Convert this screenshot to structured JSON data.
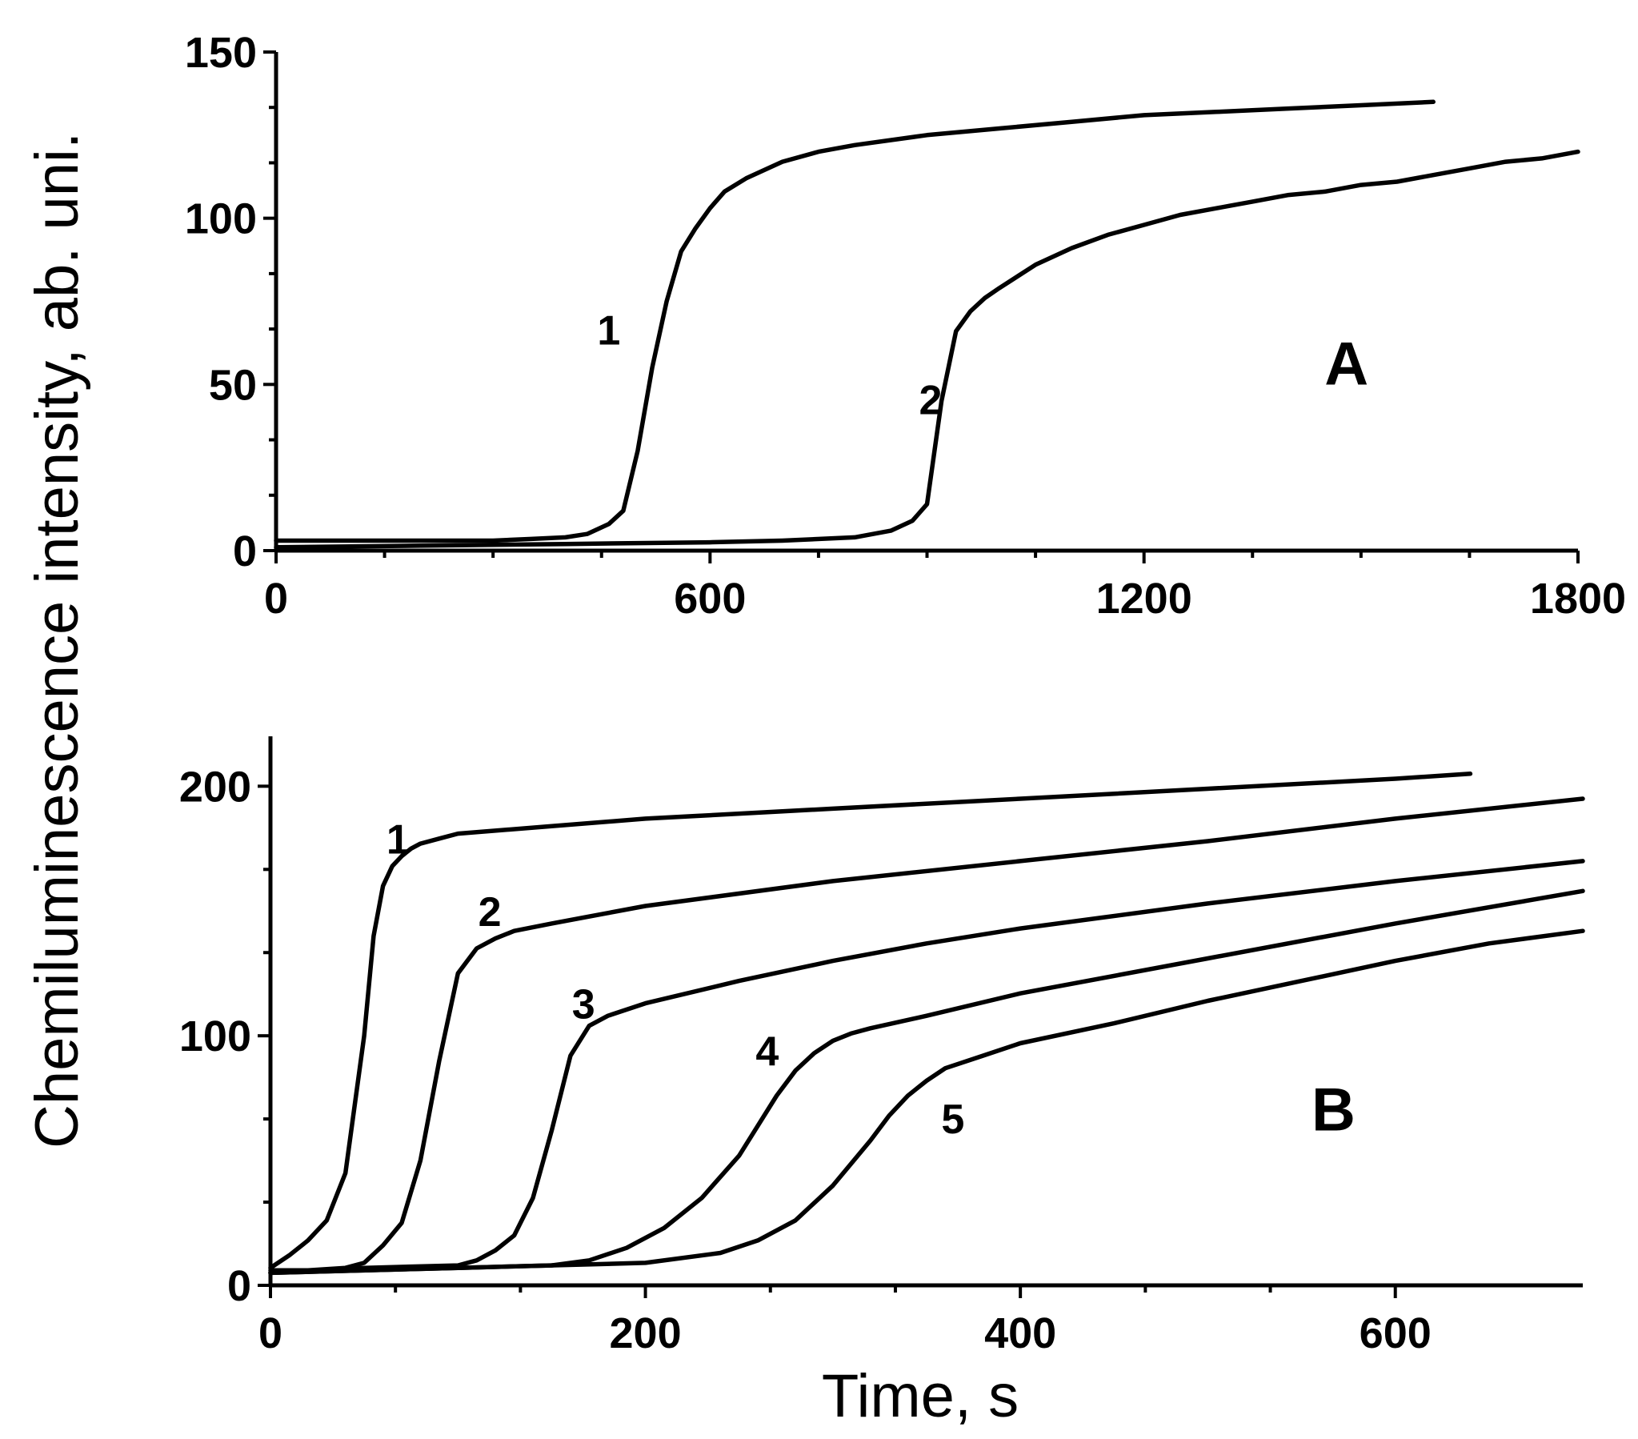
{
  "shared": {
    "ylabel": "Chemiluminescence intensity, ab. uni.",
    "xlabel": "Time, s"
  },
  "chart_data": [
    {
      "type": "line",
      "panel": "A",
      "xlim": [
        0,
        1800
      ],
      "ylim": [
        0,
        150
      ],
      "xticks": [
        0,
        600,
        1200,
        1800
      ],
      "yticks": [
        0,
        50,
        100,
        150
      ],
      "series": [
        {
          "name": "1",
          "x": [
            0,
            100,
            200,
            300,
            350,
            400,
            430,
            460,
            480,
            500,
            520,
            540,
            560,
            580,
            600,
            620,
            650,
            680,
            700,
            750,
            800,
            900,
            1000,
            1100,
            1200,
            1300,
            1400,
            1500,
            1600
          ],
          "y": [
            3,
            3,
            3,
            3,
            3.5,
            4,
            5,
            8,
            12,
            30,
            55,
            75,
            90,
            97,
            103,
            108,
            112,
            115,
            117,
            120,
            122,
            125,
            127,
            129,
            131,
            132,
            133,
            134,
            135
          ]
        },
        {
          "name": "2",
          "x": [
            0,
            200,
            400,
            600,
            700,
            800,
            850,
            880,
            900,
            920,
            940,
            960,
            980,
            1000,
            1050,
            1100,
            1150,
            1200,
            1250,
            1300,
            1350,
            1400,
            1450,
            1500,
            1550,
            1600,
            1650,
            1700,
            1750,
            1800
          ],
          "y": [
            1,
            1.5,
            2,
            2.5,
            3,
            4,
            6,
            9,
            14,
            45,
            66,
            72,
            76,
            79,
            86,
            91,
            95,
            98,
            101,
            103,
            105,
            107,
            108,
            110,
            111,
            113,
            115,
            117,
            118,
            120
          ]
        }
      ],
      "annotations": [
        {
          "text": "1",
          "x": 460,
          "y": 62
        },
        {
          "text": "2",
          "x": 905,
          "y": 41
        },
        {
          "text": "A",
          "x": 1480,
          "y": 50
        }
      ]
    },
    {
      "type": "line",
      "panel": "B",
      "xlim": [
        0,
        700
      ],
      "ylim": [
        0,
        220
      ],
      "xticks": [
        0,
        200,
        400,
        600
      ],
      "yticks": [
        0,
        100,
        200
      ],
      "series": [
        {
          "name": "1",
          "x": [
            0,
            10,
            20,
            30,
            40,
            50,
            55,
            60,
            65,
            70,
            75,
            80,
            90,
            100,
            150,
            200,
            300,
            400,
            500,
            600,
            640
          ],
          "y": [
            7,
            12,
            18,
            26,
            45,
            100,
            140,
            160,
            168,
            172,
            175,
            177,
            179,
            181,
            184,
            187,
            191,
            195,
            199,
            203,
            205
          ]
        },
        {
          "name": "2",
          "x": [
            0,
            20,
            40,
            50,
            60,
            70,
            80,
            90,
            100,
            110,
            120,
            130,
            150,
            200,
            300,
            400,
            500,
            600,
            700
          ],
          "y": [
            6,
            6,
            7,
            9,
            16,
            25,
            50,
            90,
            125,
            135,
            139,
            142,
            145,
            152,
            162,
            170,
            178,
            187,
            195
          ]
        },
        {
          "name": "3",
          "x": [
            0,
            50,
            100,
            110,
            120,
            130,
            140,
            150,
            160,
            170,
            180,
            200,
            250,
            300,
            350,
            400,
            500,
            600,
            700
          ],
          "y": [
            5,
            7,
            8,
            10,
            14,
            20,
            35,
            62,
            92,
            104,
            108,
            113,
            122,
            130,
            137,
            143,
            153,
            162,
            170
          ]
        },
        {
          "name": "4",
          "x": [
            0,
            100,
            150,
            170,
            190,
            210,
            230,
            250,
            270,
            280,
            290,
            300,
            310,
            320,
            350,
            400,
            500,
            600,
            700
          ],
          "y": [
            5,
            7,
            8,
            10,
            15,
            23,
            35,
            52,
            76,
            86,
            93,
            98,
            101,
            103,
            108,
            117,
            131,
            145,
            158
          ]
        },
        {
          "name": "5",
          "x": [
            0,
            100,
            200,
            240,
            260,
            280,
            300,
            320,
            330,
            340,
            350,
            360,
            380,
            400,
            450,
            500,
            550,
            600,
            650,
            700
          ],
          "y": [
            5,
            7,
            9,
            13,
            18,
            26,
            40,
            58,
            68,
            76,
            82,
            87,
            92,
            97,
            105,
            114,
            122,
            130,
            137,
            142
          ]
        }
      ],
      "annotations": [
        {
          "text": "1",
          "x": 68,
          "y": 173
        },
        {
          "text": "2",
          "x": 117,
          "y": 144
        },
        {
          "text": "3",
          "x": 167,
          "y": 107
        },
        {
          "text": "4",
          "x": 265,
          "y": 88
        },
        {
          "text": "5",
          "x": 364,
          "y": 61
        },
        {
          "text": "B",
          "x": 567,
          "y": 62
        }
      ]
    }
  ]
}
